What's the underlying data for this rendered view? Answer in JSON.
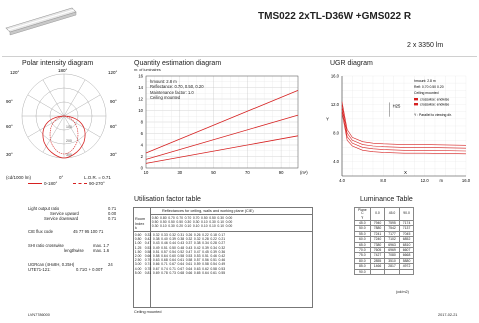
{
  "header": {
    "title": "TMS022 2xTL-D36W +GMS022 R",
    "subtitle": "2 x 3350 lm"
  },
  "polar": {
    "title": "Polar intensity diagram",
    "angles_top": [
      "120°",
      "180°",
      "120°"
    ],
    "angles_side_left": [
      "90°",
      "60°",
      "30°"
    ],
    "angles_side_right": [
      "90°",
      "60°",
      "30°"
    ],
    "footer_left": "(cd/1000 lm)",
    "footer_mid": "0°",
    "footer_lor": "L.O.R. = 0.71",
    "legend": [
      {
        "label": "0-180°",
        "color": "#d62020"
      },
      {
        "label": "90-270°",
        "color": "#d62020"
      }
    ],
    "radial_labels": [
      "100",
      "200",
      "300"
    ]
  },
  "quantity": {
    "title": "Quantity estimation diagram",
    "y_unit": "nr. of luminaires",
    "y_ticks": [
      "16",
      "14",
      "12",
      "10",
      "8",
      "6",
      "4",
      "2",
      "0"
    ],
    "x_ticks": [
      "10",
      "30",
      "50",
      "70",
      "90"
    ],
    "x_unit": "(m²)",
    "info": [
      "hmount: 2.8 m",
      "Reflectance: 0.70, 0.50, 0.20",
      "Maintenance factor: 1.0",
      "Ceiling mounted"
    ],
    "line_labels": [
      "750 lx",
      "500 lx",
      "300 lx"
    ]
  },
  "chart_data": [
    {
      "type": "line",
      "title": "Quantity estimation diagram",
      "ylabel": "nr. of luminaires",
      "xlabel": "(m²)",
      "xlim": [
        10,
        100
      ],
      "ylim": [
        0,
        16
      ],
      "series": [
        {
          "name": "750 lx",
          "x": [
            10,
            100
          ],
          "y": [
            2.6,
            13.5
          ]
        },
        {
          "name": "500 lx",
          "x": [
            10,
            100
          ],
          "y": [
            1.5,
            9.2
          ]
        },
        {
          "name": "300 lx",
          "x": [
            10,
            100
          ],
          "y": [
            0.8,
            5.6
          ]
        }
      ]
    },
    {
      "type": "line",
      "title": "UGR diagram",
      "ylabel": "Y",
      "xlabel": "X",
      "xlim": [
        4,
        16
      ],
      "ylim": [
        2,
        16
      ],
      "series": [
        {
          "name": "ugr-1",
          "x": [
            4,
            4.5,
            5,
            6,
            7,
            8,
            10,
            12,
            16
          ],
          "y": [
            12.4,
            8.5,
            7.4,
            6.8,
            6.6,
            6.5,
            6.4,
            6.4,
            6.3
          ]
        },
        {
          "name": "ugr-2",
          "x": [
            4,
            4.5,
            5,
            6,
            7,
            8,
            10,
            12,
            16
          ],
          "y": [
            11.9,
            8.0,
            7.0,
            6.4,
            6.2,
            6.1,
            6.0,
            6.0,
            5.9
          ]
        },
        {
          "name": "ugr-3",
          "x": [
            4,
            4.5,
            5,
            6,
            7,
            8,
            10,
            12,
            16
          ],
          "y": [
            11.4,
            7.5,
            6.6,
            6.0,
            5.8,
            5.7,
            5.6,
            5.6,
            5.5
          ]
        },
        {
          "name": "ugr-4",
          "x": [
            4,
            4.5,
            5,
            6,
            7,
            8,
            10,
            12,
            16
          ],
          "y": [
            10.9,
            7.0,
            6.2,
            5.6,
            5.4,
            5.3,
            5.2,
            5.2,
            5.1
          ]
        }
      ]
    }
  ],
  "ugr": {
    "title": "UGR diagram",
    "y_ticks": [
      "16.0",
      "12.0",
      "8.0",
      "4.0"
    ],
    "x_ticks": [
      "4.0",
      "8.0",
      "12.0",
      "m",
      "16.0"
    ],
    "y_axis": "Y",
    "x_axis": "X",
    "marker_label": "H25",
    "info": [
      "hmount: 2.8 m",
      "Refl: 0.70 0.50 0.20",
      "Ceiling mounted"
    ],
    "legend": [
      "crosswise: endwise",
      "crosswise: endwise"
    ],
    "note": "Y : Parallel to viewing dir."
  },
  "specs": {
    "rows": [
      {
        "label": "Light output ratio",
        "value": "0.71"
      },
      {
        "label": "Service upward",
        "value": "0.00"
      },
      {
        "label": "Service downward",
        "value": "0.71"
      },
      {
        "label": "CIE flux code",
        "value": "45 77 95 100 71"
      },
      {
        "label": "SHI ratio  crosswise",
        "value": "max. 1.7"
      },
      {
        "label": "lengthwise",
        "value": "max. 1.6"
      },
      {
        "label": "UGRcan (4Hx8H, 0.25H)",
        "value": "24"
      },
      {
        "label": "UTE71-121:",
        "value": "0.71G + 0.00T"
      }
    ]
  },
  "utilisation": {
    "title": "Utilisation factor table",
    "header": "Reflectances for ceiling, walls and working plane (CIE)",
    "row_labels": [
      "Room",
      "Index",
      "k"
    ],
    "refl_rows": [
      [
        "0.80",
        "0.80",
        "0.70",
        "0.70",
        "0.70",
        "0.70",
        "0.50",
        "0.50",
        "0.30",
        "0.00"
      ],
      [
        "0.50",
        "0.50",
        "0.50",
        "0.50",
        "0.30",
        "0.30",
        "0.10",
        "0.30",
        "0.10",
        "0.00"
      ],
      [
        "0.30",
        "0.10",
        "0.30",
        "0.20",
        "0.10",
        "0.10",
        "0.10",
        "0.10",
        "0.10",
        "0.00"
      ]
    ],
    "k_values": [
      "0.60",
      "0.80",
      "1.00",
      "1.25",
      "1.50",
      "2.00",
      "2.50",
      "3.00",
      "4.00",
      "5.00"
    ],
    "values": [
      [
        "0.33",
        "0.32",
        "0.33",
        "0.32",
        "0.31",
        "0.26",
        "0.26",
        "0.22",
        "0.18",
        "0.17"
      ],
      [
        "0.42",
        "0.38",
        "0.40",
        "0.39",
        "0.38",
        "0.32",
        "0.32",
        "0.28",
        "0.22",
        "0.21"
      ],
      [
        "0.47",
        "0.43",
        "0.46",
        "0.44",
        "0.43",
        "0.37",
        "0.38",
        "0.34",
        "0.28",
        "0.27"
      ],
      [
        "0.53",
        "0.49",
        "0.51",
        "0.50",
        "0.48",
        "0.43",
        "0.42",
        "0.39",
        "0.34",
        "0.32"
      ],
      [
        "0.58",
        "0.51",
        "0.57",
        "0.54",
        "0.52",
        "0.47",
        "0.47",
        "0.45",
        "0.39",
        "0.36"
      ],
      [
        "0.66",
        "0.58",
        "0.64",
        "0.60",
        "0.58",
        "0.53",
        "0.53",
        "0.51",
        "0.46",
        "0.42"
      ],
      [
        "0.70",
        "0.63",
        "0.68",
        "0.64",
        "0.61",
        "0.58",
        "0.57",
        "0.56",
        "0.51",
        "0.46"
      ],
      [
        "0.74",
        "0.66",
        "0.71",
        "0.67",
        "0.64",
        "0.61",
        "0.59",
        "0.58",
        "0.54",
        "0.49"
      ],
      [
        "0.78",
        "0.67",
        "0.74",
        "0.71",
        "0.67",
        "0.64",
        "0.63",
        "0.62",
        "0.58",
        "0.53"
      ],
      [
        "0.81",
        "0.69",
        "0.78",
        "0.73",
        "0.68",
        "0.66",
        "0.65",
        "0.64",
        "0.61",
        "0.55"
      ]
    ],
    "footer": "Ceiling mounted"
  },
  "luminance": {
    "title": "Luminance Table",
    "headers": [
      "Plane\nC\nγ",
      "0.0",
      "45.0",
      "90.0"
    ],
    "rows": [
      [
        "45.0",
        "7940",
        "7595",
        "7174"
      ],
      [
        "50.0",
        "7880",
        "7542",
        "7137"
      ],
      [
        "55.0",
        "7241",
        "7177",
        "7045"
      ],
      [
        "60.0",
        "7240",
        "7102",
        "6852"
      ],
      [
        "65.0",
        "7380",
        "6963",
        "6810"
      ],
      [
        "70.0",
        "7605",
        "6969",
        "6607"
      ],
      [
        "75.0",
        "7427",
        "7080",
        "6668"
      ],
      [
        "80.0",
        "2855",
        "3510",
        "5880"
      ],
      [
        "85.0",
        "1466",
        "2817",
        "4972"
      ],
      [
        "90.0",
        "",
        "",
        ""
      ]
    ],
    "footer": "(cd/m2)"
  },
  "footer": {
    "left": "LVN7786000",
    "right": "2017-02-21"
  }
}
